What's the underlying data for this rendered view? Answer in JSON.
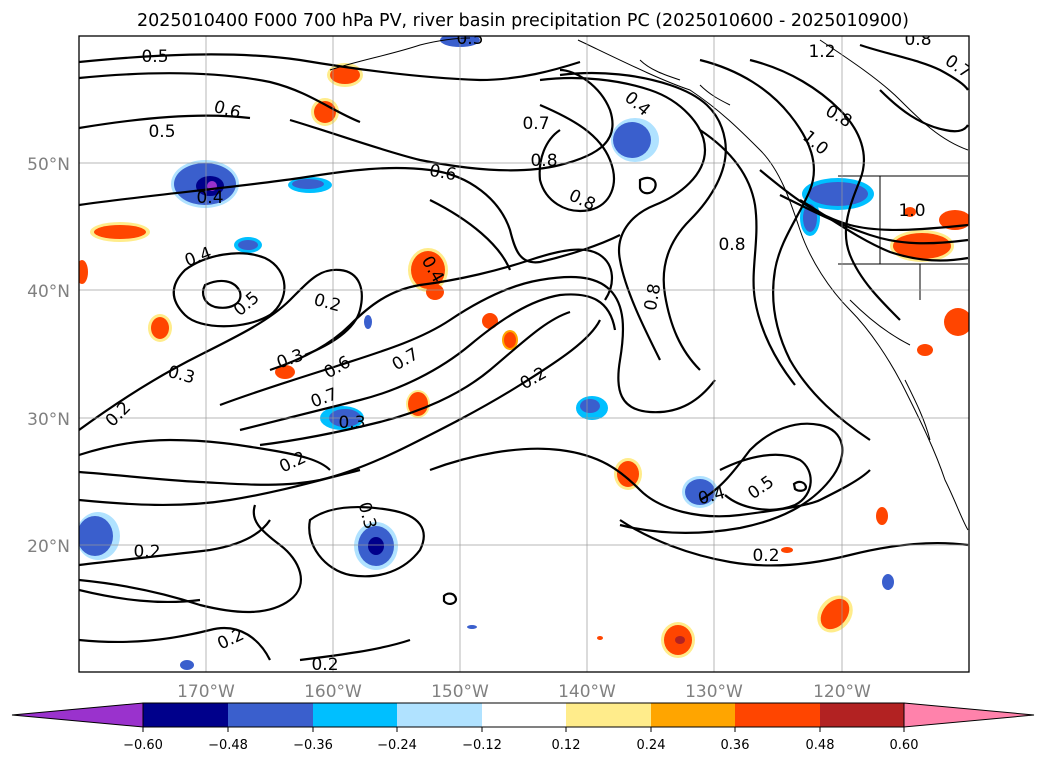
{
  "map": {
    "title": "2025010400 F000 700 hPa PV, river basin precipitation PC (2025010600 - 2025010900)",
    "lat_labels": [
      "50°N",
      "40°N",
      "30°N",
      "20°N"
    ],
    "lon_labels": [
      "170°W",
      "160°W",
      "150°W",
      "140°W",
      "130°W",
      "120°W"
    ],
    "contour_labels": [
      {
        "t": "0.5"
      },
      {
        "t": "0.6"
      },
      {
        "t": "0.5"
      },
      {
        "t": "0.6"
      },
      {
        "t": "0.4"
      },
      {
        "t": "0.4"
      },
      {
        "t": "0.5"
      },
      {
        "t": "0.3"
      },
      {
        "t": "0.2"
      },
      {
        "t": "0.2"
      },
      {
        "t": "0.3"
      },
      {
        "t": "0.6"
      },
      {
        "t": "0.7"
      },
      {
        "t": "0.7"
      },
      {
        "t": "0.3"
      },
      {
        "t": "0.2"
      },
      {
        "t": "0.4"
      },
      {
        "t": "0.3"
      },
      {
        "t": "0.2"
      },
      {
        "t": "0.2"
      },
      {
        "t": "0.2"
      },
      {
        "t": "0.5"
      },
      {
        "t": "0.4"
      },
      {
        "t": "0.7"
      },
      {
        "t": "0.8"
      },
      {
        "t": "0.8"
      },
      {
        "t": "0.8"
      },
      {
        "t": "0.8"
      },
      {
        "t": "0.2"
      },
      {
        "t": "0.4"
      },
      {
        "t": "0.5"
      },
      {
        "t": "0.2"
      },
      {
        "t": "1.2"
      },
      {
        "t": "0.8"
      },
      {
        "t": "1.0"
      },
      {
        "t": "0.8"
      },
      {
        "t": "0.7"
      },
      {
        "t": "1.0"
      }
    ]
  },
  "colorbar": {
    "tick_labels": [
      "−0.60",
      "−0.48",
      "−0.36",
      "−0.24",
      "−0.12",
      "0.12",
      "0.24",
      "0.36",
      "0.48",
      "0.60"
    ],
    "colors": [
      "#9a32cd",
      "#00008b",
      "#3a5fcd",
      "#00bfff",
      "#b0e2ff",
      "#ffffff",
      "#ffec8b",
      "#ffa500",
      "#ff4500",
      "#b22222",
      "#ff82ab"
    ]
  }
}
